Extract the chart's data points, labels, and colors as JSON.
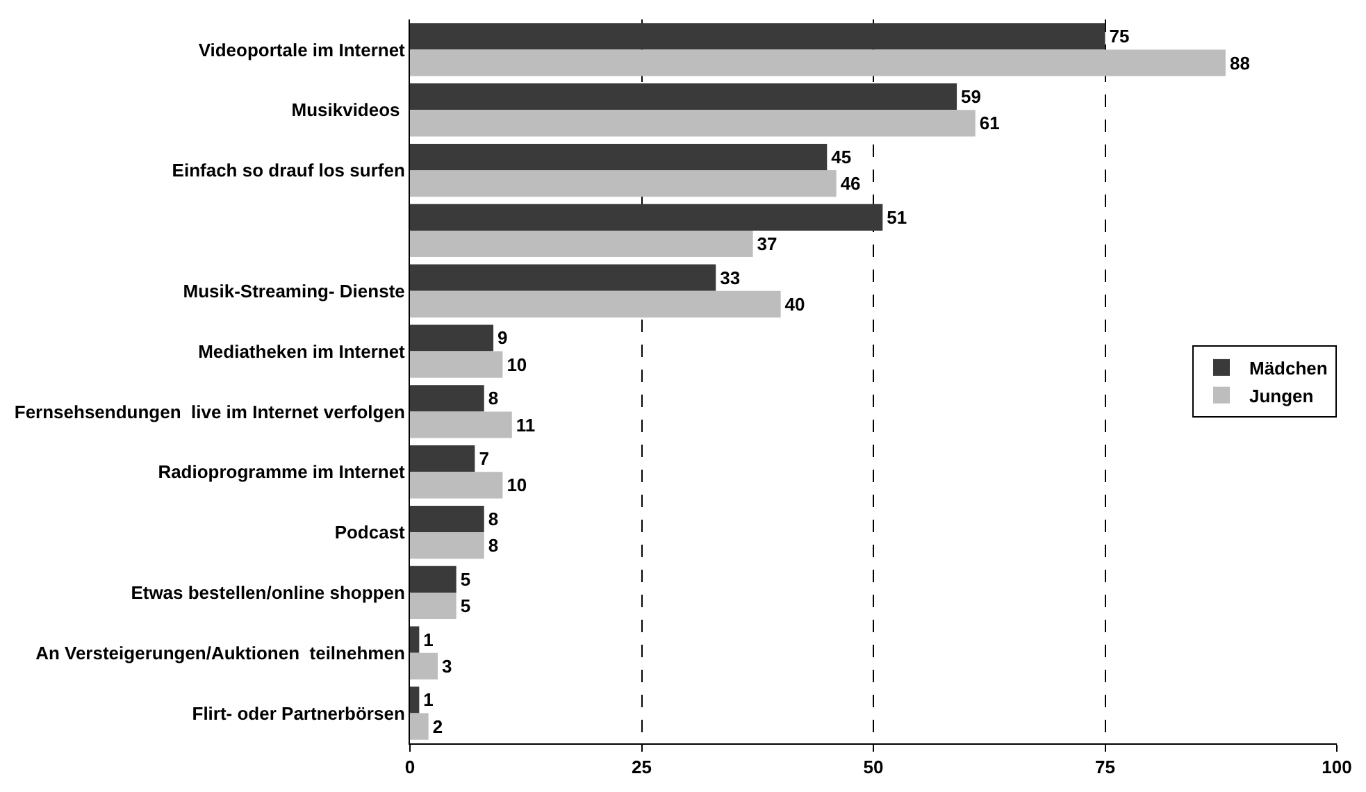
{
  "chart_data": {
    "type": "bar",
    "orientation": "horizontal",
    "categories": [
      "Videoportale im Internet",
      "Musikvideos ",
      "Einfach so drauf los surfen",
      null,
      "Musik-Streaming- Dienste",
      "Mediatheken im Internet",
      "Fernsehsendungen  live im Internet verfolgen",
      "Radioprogramme im Internet",
      "Podcast",
      "Etwas bestellen/online shoppen",
      "An Versteigerungen/Auktionen  teilnehmen",
      "Flirt- oder Partnerbörsen"
    ],
    "series": [
      {
        "name": "Mädchen",
        "color": "#3a3a3a",
        "values": [
          75,
          59,
          45,
          51,
          33,
          9,
          8,
          7,
          8,
          5,
          1,
          1
        ]
      },
      {
        "name": "Jungen",
        "color": "#bdbdbd",
        "values": [
          88,
          61,
          46,
          37,
          40,
          10,
          11,
          10,
          8,
          5,
          3,
          2
        ]
      }
    ],
    "xlim": [
      0,
      100
    ],
    "xticks": [
      0,
      25,
      50,
      75,
      100
    ],
    "grid": "x",
    "legend": "right",
    "data_labels": true
  }
}
